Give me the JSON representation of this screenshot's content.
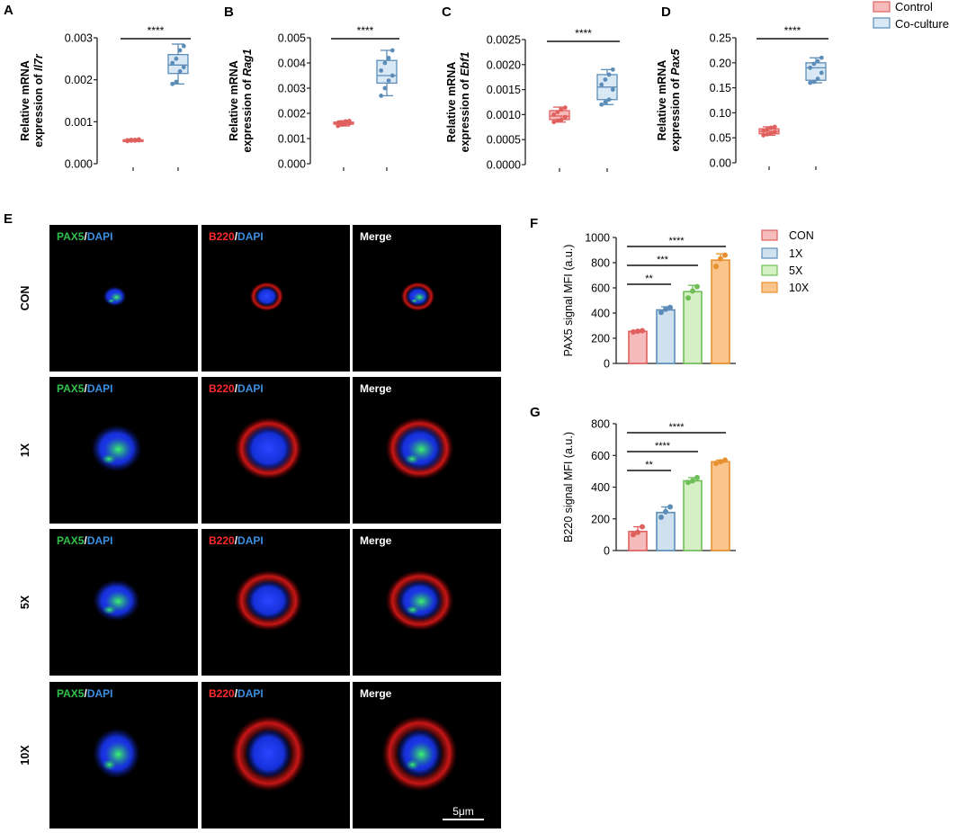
{
  "panel_letters": [
    "A",
    "B",
    "C",
    "D",
    "E",
    "F",
    "G"
  ],
  "top_legend": [
    {
      "label": "Control",
      "color": "#ee7b7b"
    },
    {
      "label": "Co-culture",
      "color": "#9ec3df"
    }
  ],
  "colors": {
    "control_fill": "#f6bcbc",
    "control_stroke": "#e0605e",
    "coculture_fill": "#d8e8f4",
    "coculture_stroke": "#5c8db8",
    "con_fill": "#f6bcbc",
    "con_stroke": "#e0605e",
    "x1_fill": "#cfe0ef",
    "x1_stroke": "#5c8db8",
    "x5_fill": "#d4f0c4",
    "x5_stroke": "#6fbe56",
    "x10_fill": "#f9c58c",
    "x10_stroke": "#e8902e"
  },
  "chart_data": [
    {
      "panel": "A",
      "type": "box",
      "ylabel_prefix": "Relative mRNA",
      "ylabel_line2": "expression of ",
      "gene": "Il7r",
      "ylim": [
        0,
        0.003
      ],
      "yticks": [
        "0.000",
        "0.001",
        "0.002",
        "0.003"
      ],
      "significance": "****",
      "series": [
        {
          "name": "Control",
          "min": 0.00054,
          "q1": 0.00055,
          "median": 0.00056,
          "q3": 0.00057,
          "max": 0.00058,
          "points": [
            0.00054,
            0.00055,
            0.00055,
            0.00056,
            0.00056,
            0.00057,
            0.00057,
            0.00058
          ]
        },
        {
          "name": "Co-culture",
          "min": 0.0019,
          "q1": 0.00215,
          "median": 0.00235,
          "q3": 0.0026,
          "max": 0.00285,
          "points": [
            0.0019,
            0.00195,
            0.0022,
            0.0023,
            0.0024,
            0.0025,
            0.0027,
            0.0028
          ]
        }
      ]
    },
    {
      "panel": "B",
      "type": "box",
      "ylabel_prefix": "Relative mRNA",
      "ylabel_line2": "expression of ",
      "gene": "Rag1",
      "ylim": [
        0,
        0.005
      ],
      "yticks": [
        "0.000",
        "0.001",
        "0.002",
        "0.003",
        "0.004",
        "0.005"
      ],
      "significance": "****",
      "series": [
        {
          "name": "Control",
          "min": 0.0015,
          "q1": 0.00157,
          "median": 0.0016,
          "q3": 0.00165,
          "max": 0.0017,
          "points": [
            0.0015,
            0.00155,
            0.00158,
            0.0016,
            0.00162,
            0.00165,
            0.00168,
            0.0017
          ]
        },
        {
          "name": "Co-culture",
          "min": 0.0027,
          "q1": 0.0032,
          "median": 0.0035,
          "q3": 0.0041,
          "max": 0.0045,
          "points": [
            0.0027,
            0.003,
            0.0033,
            0.0035,
            0.0037,
            0.004,
            0.0042,
            0.0045
          ]
        }
      ]
    },
    {
      "panel": "C",
      "type": "box",
      "ylabel_prefix": "Relative mRNA",
      "ylabel_line2": "expression of ",
      "gene": "Ebf1",
      "ylim": [
        0,
        0.0025
      ],
      "yticks": [
        "0.0000",
        "0.0005",
        "0.0010",
        "0.0015",
        "0.0020",
        "0.0025"
      ],
      "significance": "****",
      "series": [
        {
          "name": "Control",
          "min": 0.00085,
          "q1": 0.0009,
          "median": 0.00097,
          "q3": 0.00108,
          "max": 0.00115,
          "points": [
            0.00085,
            0.00088,
            0.0009,
            0.00095,
            0.001,
            0.00105,
            0.0011,
            0.00114
          ]
        },
        {
          "name": "Co-culture",
          "min": 0.0012,
          "q1": 0.0013,
          "median": 0.00155,
          "q3": 0.0018,
          "max": 0.0019,
          "points": [
            0.0012,
            0.00125,
            0.0013,
            0.0015,
            0.0016,
            0.0017,
            0.0018,
            0.0019
          ]
        }
      ]
    },
    {
      "panel": "D",
      "type": "box",
      "ylabel_prefix": "Relative mRNA",
      "ylabel_line2": "expression of ",
      "gene": "Pax5",
      "ylim": [
        0,
        0.25
      ],
      "yticks": [
        "0.00",
        "0.05",
        "0.10",
        "0.15",
        "0.20",
        "0.25"
      ],
      "significance": "****",
      "series": [
        {
          "name": "Control",
          "min": 0.055,
          "q1": 0.058,
          "median": 0.063,
          "q3": 0.068,
          "max": 0.072,
          "points": [
            0.055,
            0.057,
            0.059,
            0.062,
            0.064,
            0.067,
            0.07,
            0.072
          ]
        },
        {
          "name": "Co-culture",
          "min": 0.16,
          "q1": 0.165,
          "median": 0.19,
          "q3": 0.2,
          "max": 0.21,
          "points": [
            0.16,
            0.162,
            0.168,
            0.18,
            0.19,
            0.198,
            0.203,
            0.21
          ]
        }
      ]
    },
    {
      "panel": "F",
      "type": "bar",
      "ylabel": "PAX5 signal MFI (a.u.)",
      "ylim": [
        0,
        1000
      ],
      "yticks": [
        "0",
        "200",
        "400",
        "600",
        "800",
        "1000"
      ],
      "categories": [
        "CON",
        "1X",
        "5X",
        "10X"
      ],
      "values": [
        255,
        425,
        570,
        820
      ],
      "errors": [
        8,
        25,
        50,
        50
      ],
      "points": [
        [
          250,
          255,
          260
        ],
        [
          405,
          430,
          445
        ],
        [
          520,
          575,
          610
        ],
        [
          770,
          830,
          860
        ]
      ],
      "comparisons": [
        {
          "from": 0,
          "to": 1,
          "label": "**"
        },
        {
          "from": 0,
          "to": 2,
          "label": "***"
        },
        {
          "from": 0,
          "to": 3,
          "label": "****"
        }
      ],
      "legend": [
        "CON",
        "1X",
        "5X",
        "10X"
      ]
    },
    {
      "panel": "G",
      "type": "bar",
      "ylabel": "B220 signal MFI (a.u.)",
      "ylim": [
        0,
        800
      ],
      "yticks": [
        "0",
        "200",
        "400",
        "600",
        "800"
      ],
      "categories": [
        "CON",
        "1X",
        "5X",
        "10X"
      ],
      "values": [
        120,
        240,
        440,
        560
      ],
      "errors": [
        30,
        35,
        20,
        10
      ],
      "points": [
        [
          100,
          115,
          150
        ],
        [
          210,
          245,
          275
        ],
        [
          430,
          440,
          460
        ],
        [
          550,
          560,
          570
        ]
      ],
      "comparisons": [
        {
          "from": 0,
          "to": 1,
          "label": "**"
        },
        {
          "from": 0,
          "to": 2,
          "label": "****"
        },
        {
          "from": 0,
          "to": 3,
          "label": "****"
        }
      ]
    }
  ],
  "microscopy": {
    "rows": [
      "CON",
      "1X",
      "5X",
      "10X"
    ],
    "columns": [
      {
        "parts": [
          {
            "text": "PAX5",
            "color": "#2ec24a"
          },
          {
            "text": "/",
            "color": "#ffffff"
          },
          {
            "text": "DAPI",
            "color": "#3b8fe0"
          }
        ]
      },
      {
        "parts": [
          {
            "text": "B220",
            "color": "#ff2a2a"
          },
          {
            "text": "/",
            "color": "#ffffff"
          },
          {
            "text": "DAPI",
            "color": "#3b8fe0"
          }
        ]
      },
      {
        "parts": [
          {
            "text": "Merge",
            "color": "#ffffff"
          }
        ]
      }
    ],
    "scale_bar": "5μm"
  }
}
